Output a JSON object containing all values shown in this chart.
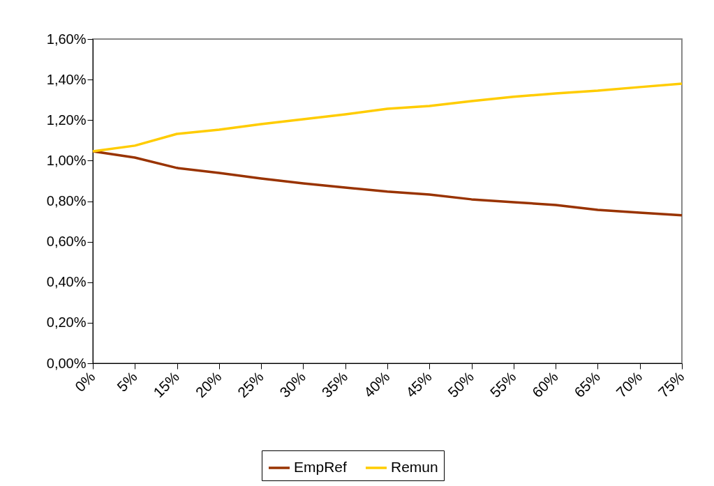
{
  "chart_data": {
    "type": "line",
    "categories": [
      "0%",
      "5%",
      "15%",
      "20%",
      "25%",
      "30%",
      "35%",
      "40%",
      "45%",
      "50%",
      "55%",
      "60%",
      "65%",
      "70%",
      "75%"
    ],
    "series": [
      {
        "name": "EmpRef",
        "color": "#993300",
        "values": [
          1.046,
          1.015,
          0.964,
          0.939,
          0.912,
          0.888,
          0.867,
          0.847,
          0.833,
          0.809,
          0.795,
          0.781,
          0.757,
          0.743,
          0.73
        ]
      },
      {
        "name": "Remun",
        "color": "#ffcc00",
        "values": [
          1.046,
          1.074,
          1.132,
          1.153,
          1.18,
          1.204,
          1.228,
          1.256,
          1.27,
          1.294,
          1.315,
          1.332,
          1.345,
          1.363,
          1.38
        ]
      }
    ],
    "ylim": [
      0,
      1.6
    ],
    "yticks": [
      {
        "value": 0,
        "label": "0,00%"
      },
      {
        "value": 0.2,
        "label": "0,20%"
      },
      {
        "value": 0.4,
        "label": "0,40%"
      },
      {
        "value": 0.6,
        "label": "0,60%"
      },
      {
        "value": 0.8,
        "label": "0,80%"
      },
      {
        "value": 1.0,
        "label": "1,00%"
      },
      {
        "value": 1.2,
        "label": "1,20%"
      },
      {
        "value": 1.4,
        "label": "1,40%"
      },
      {
        "value": 1.6,
        "label": "1,60%"
      }
    ],
    "legend": "bottom",
    "grid": false,
    "marker": "none",
    "line_style": "solid"
  }
}
